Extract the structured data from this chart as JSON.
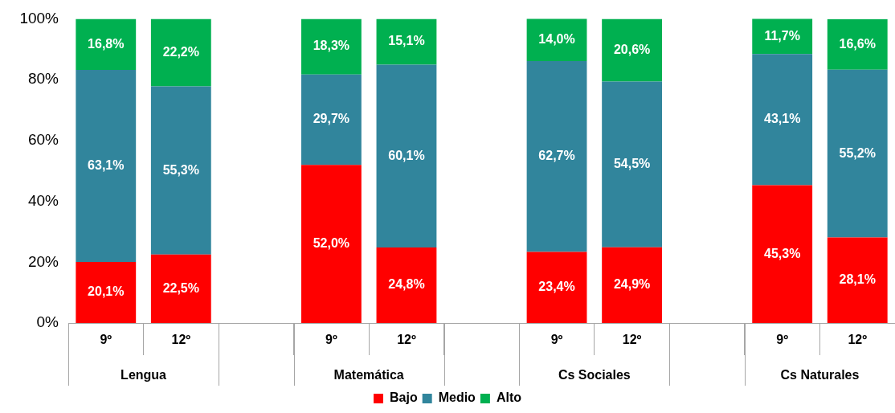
{
  "chart_data": {
    "type": "bar",
    "stacked": true,
    "categories": [
      "9º",
      "12º",
      null,
      "9º",
      "12º",
      null,
      "9º",
      "12º",
      null,
      "9º",
      "12º"
    ],
    "series": [
      {
        "name": "Bajo",
        "color": "#ff0000",
        "values": [
          20.1,
          22.5,
          null,
          52.0,
          24.8,
          null,
          23.4,
          24.9,
          null,
          45.3,
          28.1
        ],
        "value_labels": [
          "20,1%",
          "22,5%",
          null,
          "52,0%",
          "24,8%",
          null,
          "23,4%",
          "24,9%",
          null,
          "45,3%",
          "28,1%"
        ]
      },
      {
        "name": "Medio",
        "color": "#31859c",
        "values": [
          63.1,
          55.3,
          null,
          29.7,
          60.1,
          null,
          62.7,
          54.5,
          null,
          43.1,
          55.2
        ],
        "value_labels": [
          "63,1%",
          "55,3%",
          null,
          "29,7%",
          "60,1%",
          null,
          "62,7%",
          "54,5%",
          null,
          "43,1%",
          "55,2%"
        ]
      },
      {
        "name": "Alto",
        "color": "#00b050",
        "values": [
          16.8,
          22.2,
          null,
          18.3,
          15.1,
          null,
          14.0,
          20.6,
          null,
          11.7,
          16.6
        ],
        "value_labels": [
          "16,8%",
          "22,2%",
          null,
          "18,3%",
          "15,1%",
          null,
          "14,0%",
          "20,6%",
          null,
          "11,7%",
          "16,6%"
        ]
      }
    ],
    "ylim": [
      0,
      100
    ],
    "yticks": [
      {
        "value": 0,
        "label": "0%"
      },
      {
        "value": 20,
        "label": "20%"
      },
      {
        "value": 40,
        "label": "40%"
      },
      {
        "value": 60,
        "label": "60%"
      },
      {
        "value": 80,
        "label": "80%"
      },
      {
        "value": 100,
        "label": "100%"
      }
    ],
    "annotations": [
      "Lengua",
      "Matemática",
      "Cs Sociales",
      "Cs Naturales"
    ],
    "grid": false,
    "legend": "bottom"
  }
}
